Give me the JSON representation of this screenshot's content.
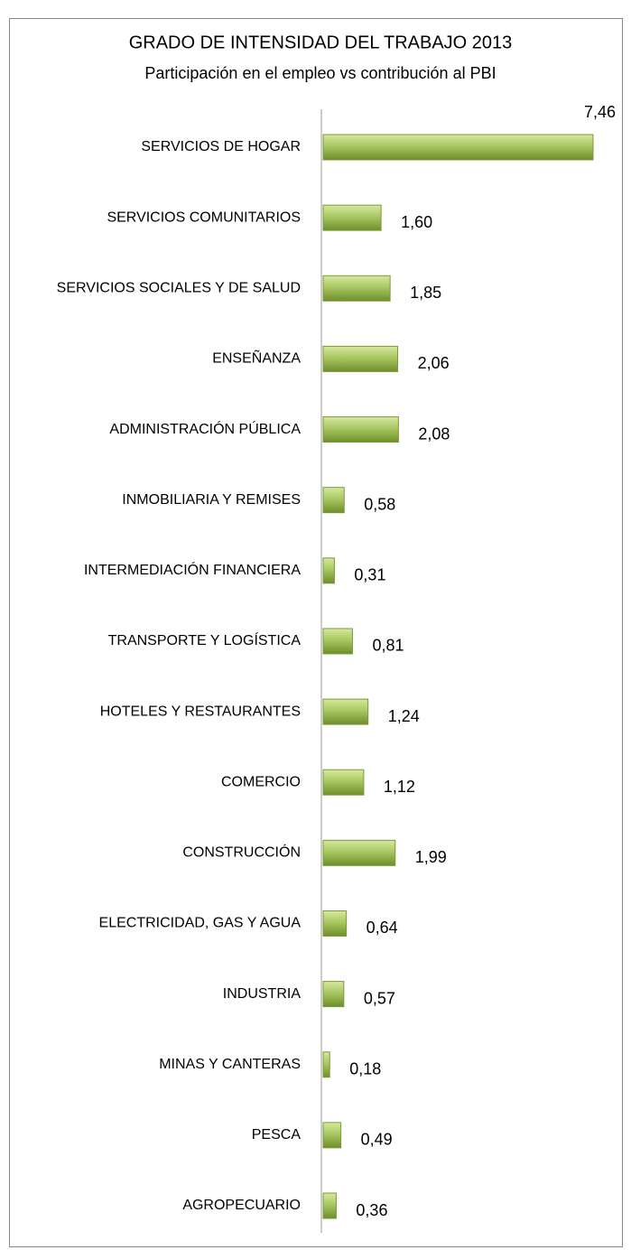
{
  "chart_data": {
    "type": "bar",
    "orientation": "horizontal",
    "title": "GRADO DE INTENSIDAD DEL TRABAJO 2013",
    "subtitle": "Participación en el empleo vs contribución al PBI",
    "categories": [
      "SERVICIOS DE HOGAR",
      "SERVICIOS COMUNITARIOS",
      "SERVICIOS SOCIALES Y DE SALUD",
      "ENSEÑANZA",
      "ADMINISTRACIÓN PÚBLICA",
      "INMOBILIARIA Y REMISES",
      "INTERMEDIACIÓN FINANCIERA",
      "TRANSPORTE Y LOGÍSTICA",
      "HOTELES Y RESTAURANTES",
      "COMERCIO",
      "CONSTRUCCIÓN",
      "ELECTRICIDAD, GAS Y AGUA",
      "INDUSTRIA",
      "MINAS Y CANTERAS",
      "PESCA",
      "AGROPECUARIO"
    ],
    "values": [
      7.46,
      1.6,
      1.85,
      2.06,
      2.08,
      0.58,
      0.31,
      0.81,
      1.24,
      1.12,
      1.99,
      0.64,
      0.57,
      0.18,
      0.49,
      0.36
    ],
    "value_labels": [
      "7,46",
      "1,60",
      "1,85",
      "2,06",
      "2,08",
      "0,58",
      "0,31",
      "0,81",
      "1,24",
      "1,12",
      "1,99",
      "0,64",
      "0,57",
      "0,18",
      "0,49",
      "0,36"
    ],
    "color": "#9bbb59"
  }
}
